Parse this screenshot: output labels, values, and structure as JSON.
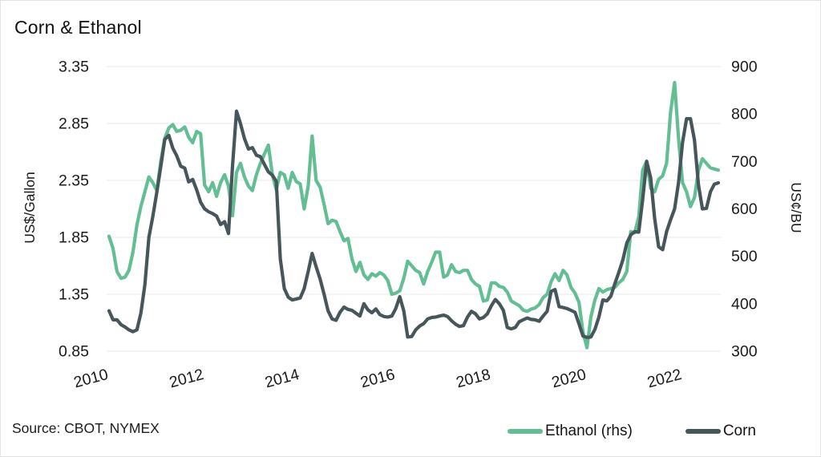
{
  "card": {
    "title": "Corn & Ethanol",
    "source": "Source: CBOT, NYMEX"
  },
  "legend": [
    {
      "label": "Ethanol (rhs)",
      "color": "#63bf93"
    },
    {
      "label": "Corn",
      "color": "#47565b"
    }
  ],
  "colors": {
    "ethanol_line": "#63bf93",
    "corn_line": "#47565b",
    "gridline": "#e7e7e7",
    "text": "#1a1a1a",
    "background": "#ffffff",
    "card_border": "#e3e3e3"
  },
  "chart_data": {
    "type": "line",
    "title": "Corn & Ethanol",
    "frequency": "monthly",
    "x_start_year": 2010,
    "x_end_year": 2022.75,
    "x_tick_labels": [
      "2010",
      "2012",
      "2014",
      "2016",
      "2018",
      "2020",
      "2022"
    ],
    "grid": "horizontal",
    "legend_position": "bottom-right",
    "left_axis": {
      "label": "US$/Gallon",
      "min": 0.85,
      "max": 3.35,
      "ticks": [
        3.35,
        2.85,
        2.35,
        1.85,
        1.35,
        0.85
      ]
    },
    "right_axis": {
      "label": "US¢/BU",
      "min": 300,
      "max": 900,
      "ticks": [
        900,
        800,
        700,
        600,
        500,
        400,
        300
      ]
    },
    "series": [
      {
        "name": "Ethanol (rhs)",
        "axis": "left",
        "unit": "US$/Gallon",
        "color": "#63bf93",
        "values": [
          1.86,
          1.75,
          1.55,
          1.49,
          1.5,
          1.56,
          1.72,
          1.96,
          2.12,
          2.25,
          2.38,
          2.33,
          2.26,
          2.52,
          2.72,
          2.81,
          2.84,
          2.78,
          2.79,
          2.82,
          2.73,
          2.68,
          2.78,
          2.76,
          2.31,
          2.25,
          2.33,
          2.21,
          2.33,
          2.4,
          2.3,
          2.04,
          2.42,
          2.5,
          2.38,
          2.3,
          2.26,
          2.4,
          2.5,
          2.58,
          2.66,
          2.4,
          2.27,
          2.42,
          2.4,
          2.28,
          2.42,
          2.34,
          2.32,
          2.1,
          2.3,
          2.74,
          2.35,
          2.29,
          2.14,
          1.97,
          2.0,
          1.99,
          1.9,
          1.82,
          1.84,
          1.66,
          1.55,
          1.63,
          1.52,
          1.48,
          1.53,
          1.51,
          1.54,
          1.52,
          1.47,
          1.35,
          1.36,
          1.38,
          1.49,
          1.64,
          1.6,
          1.56,
          1.54,
          1.44,
          1.55,
          1.63,
          1.72,
          1.72,
          1.5,
          1.52,
          1.61,
          1.55,
          1.54,
          1.56,
          1.56,
          1.48,
          1.44,
          1.42,
          1.29,
          1.3,
          1.45,
          1.45,
          1.42,
          1.41,
          1.37,
          1.29,
          1.27,
          1.25,
          1.21,
          1.2,
          1.22,
          1.23,
          1.26,
          1.32,
          1.35,
          1.46,
          1.53,
          1.47,
          1.56,
          1.52,
          1.41,
          1.36,
          1.28,
          1.02,
          0.88,
          1.15,
          1.3,
          1.4,
          1.37,
          1.39,
          1.4,
          1.41,
          1.45,
          1.48,
          1.55,
          1.9,
          1.89,
          2.03,
          2.44,
          2.52,
          2.28,
          2.25,
          2.36,
          2.39,
          2.5,
          2.95,
          3.21,
          2.72,
          2.33,
          2.25,
          2.12,
          2.2,
          2.44,
          2.54,
          2.5,
          2.46,
          2.45,
          2.44
        ]
      },
      {
        "name": "Corn",
        "axis": "right",
        "unit": "US¢/BU",
        "color": "#47565b",
        "values": [
          385,
          366,
          366,
          356,
          351,
          345,
          341,
          345,
          380,
          440,
          540,
          584,
          635,
          690,
          746,
          755,
          728,
          712,
          690,
          686,
          657,
          662,
          640,
          614,
          600,
          594,
          590,
          585,
          567,
          573,
          548,
          690,
          806,
          780,
          748,
          726,
          729,
          713,
          710,
          694,
          678,
          671,
          658,
          495,
          432,
          414,
          408,
          410,
          412,
          432,
          468,
          506,
          478,
          452,
          420,
          385,
          368,
          365,
          382,
          393,
          388,
          386,
          380,
          374,
          400,
          387,
          381,
          389,
          377,
          373,
          372,
          374,
          390,
          415,
          385,
          330,
          331,
          345,
          353,
          358,
          368,
          371,
          372,
          374,
          376,
          373,
          364,
          357,
          352,
          354,
          372,
          384,
          379,
          368,
          371,
          379,
          396,
          409,
          400,
          386,
          350,
          347,
          350,
          362,
          366,
          370,
          367,
          366,
          363,
          374,
          384,
          426,
          430,
          394,
          392,
          390,
          386,
          382,
          358,
          332,
          329,
          330,
          346,
          372,
          408,
          406,
          416,
          442,
          466,
          492,
          528,
          545,
          552,
          551,
          620,
          700,
          665,
          580,
          520,
          514,
          552,
          577,
          600,
          655,
          740,
          790,
          790,
          745,
          650,
          600,
          601,
          636,
          652,
          655
        ]
      }
    ]
  }
}
